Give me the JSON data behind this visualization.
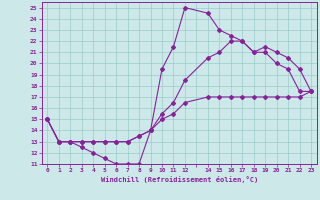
{
  "xlabel": "Windchill (Refroidissement éolien,°C)",
  "bg_color": "#cce8e8",
  "grid_color": "#99cccc",
  "line_color": "#882299",
  "marker": "D",
  "markersize": 2.0,
  "linewidth": 0.8,
  "xlim": [
    -0.5,
    23.5
  ],
  "ylim": [
    11,
    25.5
  ],
  "xtick_positions": [
    0,
    1,
    2,
    3,
    4,
    5,
    6,
    7,
    8,
    9,
    10,
    11,
    12,
    13,
    14,
    15,
    16,
    17,
    18,
    19,
    20,
    21,
    22,
    23
  ],
  "xtick_labels": [
    "0",
    "1",
    "2",
    "3",
    "4",
    "5",
    "6",
    "7",
    "8",
    "9",
    "10",
    "11",
    "12",
    "",
    "14",
    "15",
    "16",
    "17",
    "18",
    "19",
    "20",
    "21",
    "22",
    "23"
  ],
  "ytick_positions": [
    11,
    12,
    13,
    14,
    15,
    16,
    17,
    18,
    19,
    20,
    21,
    22,
    23,
    24,
    25
  ],
  "ytick_labels": [
    "11",
    "12",
    "13",
    "14",
    "15",
    "16",
    "17",
    "18",
    "19",
    "20",
    "21",
    "22",
    "23",
    "24",
    "25"
  ],
  "series1_x": [
    0,
    1,
    2,
    3,
    4,
    5,
    6,
    7,
    8,
    9,
    10,
    11,
    12,
    14,
    15,
    16,
    17,
    18,
    19,
    20,
    21,
    22,
    23
  ],
  "series1_y": [
    15,
    13,
    13,
    12.5,
    12,
    11.5,
    11,
    11,
    11,
    14,
    19.5,
    21.5,
    25,
    24.5,
    23,
    22.5,
    22,
    21,
    21,
    20,
    19.5,
    17.5,
    17.5
  ],
  "series2_x": [
    0,
    1,
    2,
    3,
    4,
    5,
    6,
    7,
    8,
    9,
    10,
    11,
    12,
    14,
    15,
    16,
    17,
    18,
    19,
    20,
    21,
    22,
    23
  ],
  "series2_y": [
    15,
    13,
    13,
    13,
    13,
    13,
    13,
    13,
    13.5,
    14,
    15.5,
    16.5,
    18.5,
    20.5,
    21,
    22,
    22,
    21,
    21.5,
    21,
    20.5,
    19.5,
    17.5
  ],
  "series3_x": [
    0,
    1,
    2,
    3,
    4,
    5,
    6,
    7,
    8,
    9,
    10,
    11,
    12,
    14,
    15,
    16,
    17,
    18,
    19,
    20,
    21,
    22,
    23
  ],
  "series3_y": [
    15,
    13,
    13,
    13,
    13,
    13,
    13,
    13,
    13.5,
    14,
    15,
    15.5,
    16.5,
    17,
    17,
    17,
    17,
    17,
    17,
    17,
    17,
    17,
    17.5
  ]
}
